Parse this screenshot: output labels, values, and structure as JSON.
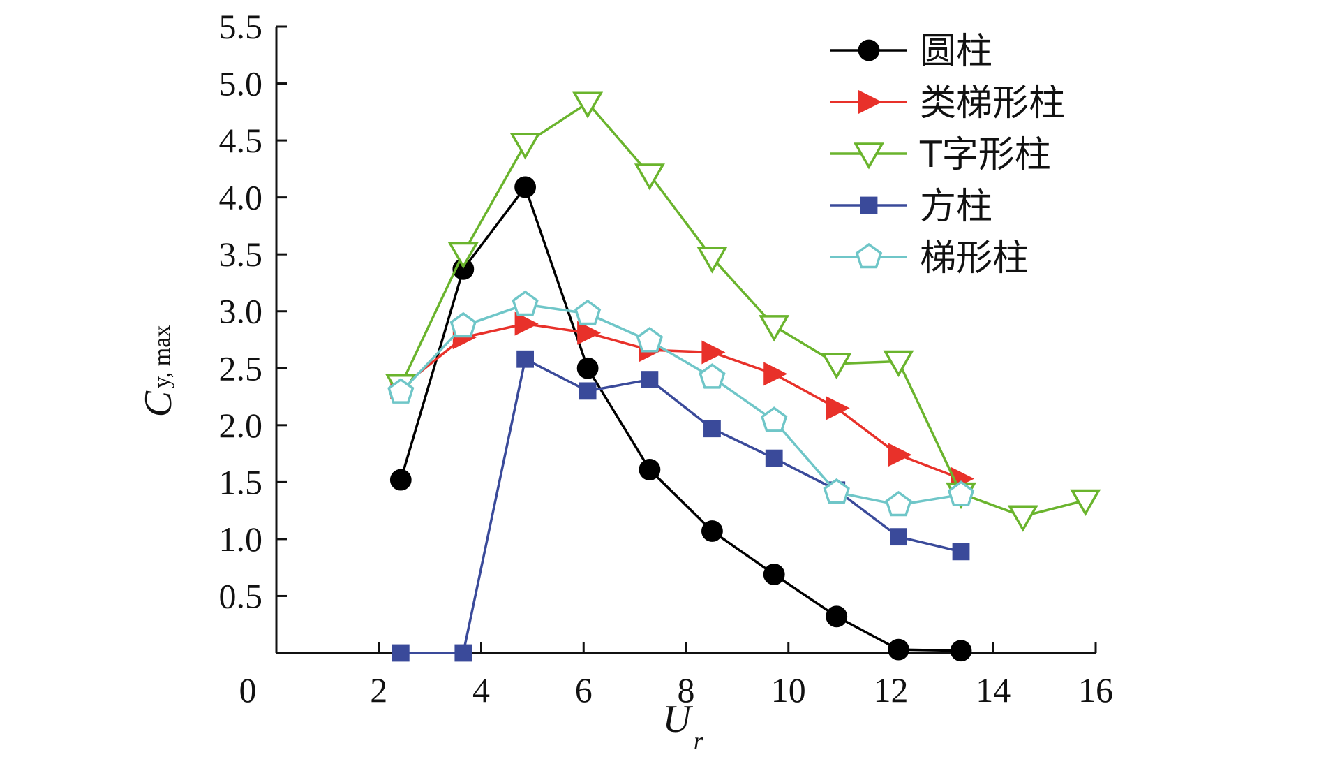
{
  "chart_data": {
    "type": "line",
    "xlabel": "U",
    "xlabel_sub": "r",
    "ylabel": "C",
    "ylabel_sub": "y, max",
    "xlim": [
      0,
      16
    ],
    "ylim": [
      0,
      5.5
    ],
    "x_ticks": [
      2,
      4,
      6,
      8,
      10,
      12,
      14,
      16
    ],
    "y_ticks": [
      0.5,
      1.0,
      1.5,
      2.0,
      2.5,
      3.0,
      3.5,
      4.0,
      4.5,
      5.0,
      5.5
    ],
    "origin_label": "0",
    "grid": false,
    "legend_position": "top-right",
    "series": [
      {
        "name": "圆柱",
        "color": "#000000",
        "marker": "circle",
        "x": [
          2.43,
          3.65,
          4.86,
          6.08,
          7.29,
          8.51,
          9.72,
          10.94,
          12.15,
          13.37
        ],
        "y": [
          1.52,
          3.37,
          4.09,
          2.5,
          1.61,
          1.07,
          0.69,
          0.32,
          0.03,
          0.02
        ]
      },
      {
        "name": "类梯形柱",
        "color": "#e8312a",
        "marker": "triangle-right",
        "x": [
          2.43,
          3.65,
          4.86,
          6.08,
          7.29,
          8.51,
          9.72,
          10.94,
          12.15,
          13.37
        ],
        "y": [
          2.33,
          2.77,
          2.89,
          2.81,
          2.66,
          2.64,
          2.45,
          2.15,
          1.74,
          1.53
        ]
      },
      {
        "name": "T字形柱",
        "color": "#6ab42d",
        "marker": "triangle-down",
        "x": [
          2.43,
          3.65,
          4.86,
          6.08,
          7.29,
          8.51,
          9.72,
          10.94,
          12.15,
          13.37,
          14.58,
          15.8
        ],
        "y": [
          2.35,
          3.51,
          4.47,
          4.83,
          4.2,
          3.47,
          2.87,
          2.54,
          2.56,
          1.4,
          1.2,
          1.34
        ]
      },
      {
        "name": "方柱",
        "color": "#3a4a9a",
        "marker": "square",
        "x": [
          2.43,
          3.65,
          4.86,
          6.08,
          7.29,
          8.51,
          9.72,
          10.94,
          12.15,
          13.37
        ],
        "y": [
          0.0,
          0.0,
          2.58,
          2.3,
          2.4,
          1.97,
          1.71,
          1.43,
          1.02,
          0.89
        ]
      },
      {
        "name": "梯形柱",
        "color": "#6fc6c8",
        "marker": "pentagon",
        "x": [
          2.43,
          3.65,
          4.86,
          6.08,
          7.29,
          8.51,
          9.72,
          10.94,
          12.15,
          13.37
        ],
        "y": [
          2.29,
          2.87,
          3.06,
          2.98,
          2.74,
          2.42,
          2.04,
          1.41,
          1.3,
          1.39
        ]
      }
    ]
  }
}
